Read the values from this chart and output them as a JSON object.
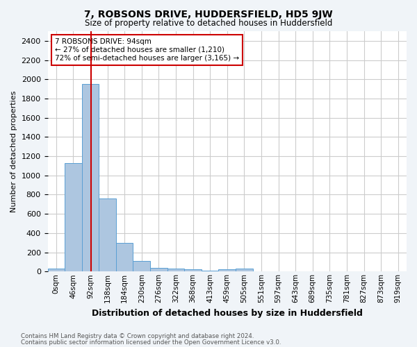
{
  "title": "7, ROBSONS DRIVE, HUDDERSFIELD, HD5 9JW",
  "subtitle": "Size of property relative to detached houses in Huddersfield",
  "xlabel": "Distribution of detached houses by size in Huddersfield",
  "ylabel": "Number of detached properties",
  "bar_values": [
    30,
    1130,
    1950,
    760,
    300,
    110,
    40,
    30,
    20,
    10,
    20,
    30,
    0,
    0,
    0,
    0,
    0,
    0,
    0,
    0,
    0
  ],
  "bar_labels": [
    "0sqm",
    "46sqm",
    "92sqm",
    "138sqm",
    "184sqm",
    "230sqm",
    "276sqm",
    "322sqm",
    "368sqm",
    "413sqm",
    "459sqm",
    "505sqm",
    "551sqm",
    "597sqm",
    "643sqm",
    "689sqm",
    "735sqm",
    "781sqm",
    "827sqm",
    "873sqm",
    "919sqm"
  ],
  "bar_color": "#adc6e0",
  "bar_edge_color": "#5a9fd4",
  "ylim": [
    0,
    2500
  ],
  "yticks": [
    0,
    200,
    400,
    600,
    800,
    1000,
    1200,
    1400,
    1600,
    1800,
    2000,
    2200,
    2400
  ],
  "vline_x": 2.04,
  "vline_color": "#cc0000",
  "annotation_text": "7 ROBSONS DRIVE: 94sqm\n← 27% of detached houses are smaller (1,210)\n72% of semi-detached houses are larger (3,165) →",
  "annotation_box_color": "#ffffff",
  "annotation_box_edge": "#cc0000",
  "footer1": "Contains HM Land Registry data © Crown copyright and database right 2024.",
  "footer2": "Contains public sector information licensed under the Open Government Licence v3.0.",
  "background_color": "#f0f4f8",
  "plot_bg_color": "#ffffff",
  "grid_color": "#cccccc"
}
